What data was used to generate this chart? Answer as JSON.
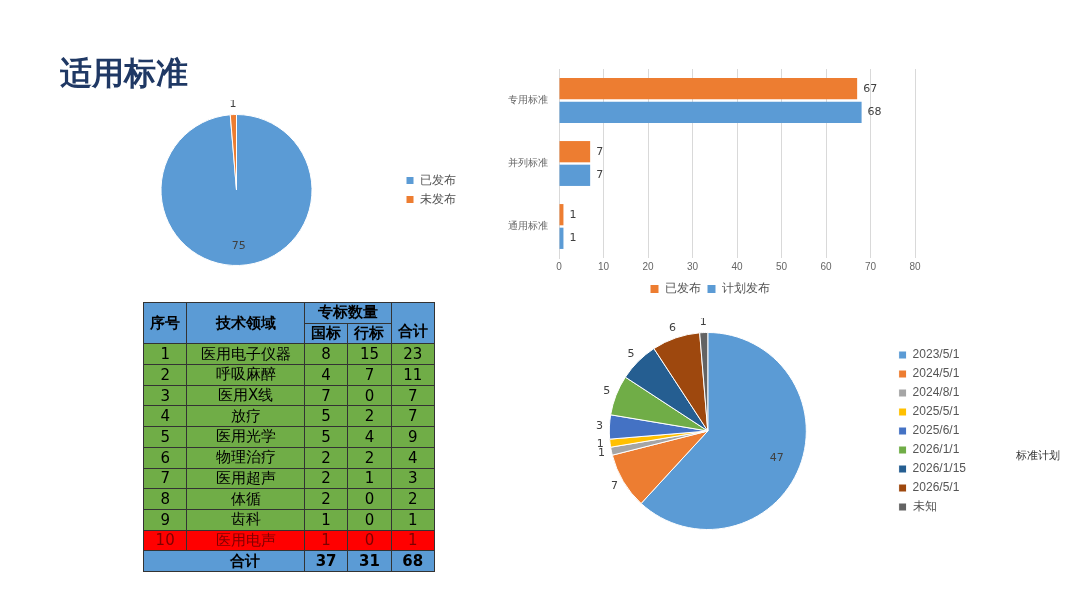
{
  "chart_data": [
    {
      "type": "pie",
      "title": "适用标准",
      "categories": [
        "已发布",
        "未发布"
      ],
      "values": [
        75,
        1
      ],
      "colors": [
        "#5b9bd5",
        "#ed7d31"
      ],
      "legend": "right",
      "data_labels": true
    },
    {
      "type": "bar",
      "orientation": "horizontal",
      "categories": [
        "专用标准",
        "并列标准",
        "通用标准"
      ],
      "series": [
        {
          "name": "已发布",
          "color": "#ed7d31",
          "values": [
            67,
            7,
            1
          ]
        },
        {
          "name": "计划发布",
          "color": "#5b9bd5",
          "values": [
            68,
            7,
            1
          ]
        }
      ],
      "xlim": [
        0,
        80
      ],
      "xticks": [
        0,
        10,
        20,
        30,
        40,
        50,
        60,
        70,
        80
      ],
      "grid": "x",
      "legend": "bottom",
      "data_labels": true
    },
    {
      "type": "heatmap",
      "data_labels": true,
      "xlabel": "专标数量",
      "annotations": [
        "序号",
        "技术领域"
      ],
      "categories": [
        "国标",
        "行标",
        "合计"
      ],
      "y_categories": [
        "医用电子仪器",
        "呼吸麻醉",
        "医用X线",
        "放疗",
        "医用光学",
        "物理治疗",
        "医用超声",
        "体循",
        "齿科",
        "医用电声",
        "合计"
      ],
      "y2_categories": [
        "1",
        "2",
        "3",
        "4",
        "5",
        "6",
        "7",
        "8",
        "9",
        "10",
        null
      ],
      "cells": [
        [
          8,
          15,
          23
        ],
        [
          4,
          7,
          11
        ],
        [
          7,
          0,
          7
        ],
        [
          5,
          2,
          7
        ],
        [
          5,
          4,
          9
        ],
        [
          2,
          2,
          4
        ],
        [
          2,
          1,
          3
        ],
        [
          2,
          0,
          2
        ],
        [
          1,
          0,
          1
        ],
        [
          1,
          0,
          1
        ],
        [
          37,
          31,
          68
        ]
      ]
    },
    {
      "type": "pie",
      "categories": [
        "2023/5/1",
        "2024/5/1",
        "2024/8/1",
        "2025/5/1",
        "2025/6/1",
        "2026/1/1",
        "2026/1/15",
        "2026/5/1",
        "未知"
      ],
      "values": [
        47,
        7,
        1,
        1,
        3,
        5,
        5,
        6,
        1
      ],
      "colors": [
        "#5b9bd5",
        "#ed7d31",
        "#a5a5a5",
        "#ffc000",
        "#4472c4",
        "#70ad47",
        "#255e91",
        "#9e480e",
        "#636363"
      ],
      "legend": "right",
      "data_labels": true,
      "annotations": [
        "标准计划"
      ]
    }
  ]
}
